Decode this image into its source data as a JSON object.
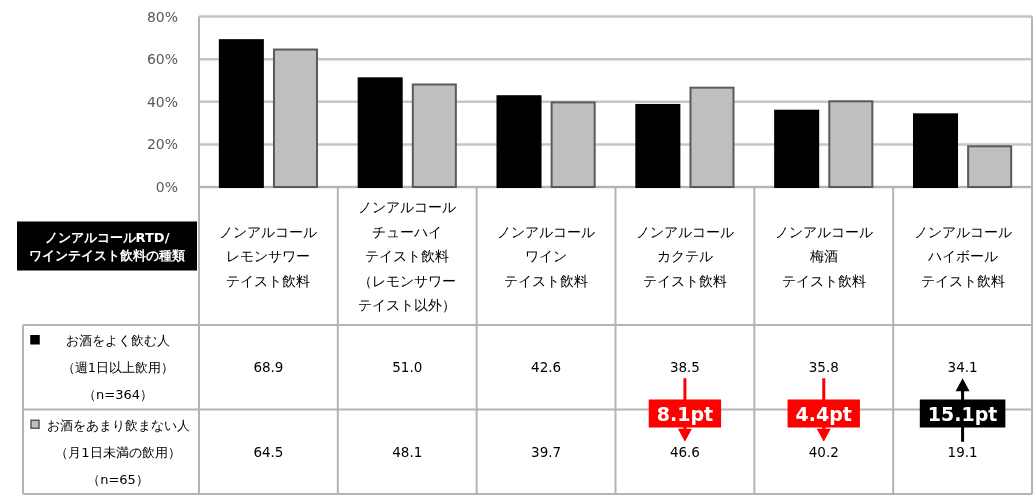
{
  "chart_data": {
    "type": "bar",
    "xlabel": "ノンアルコールRTD/\nワインテイスト飲料の種類",
    "categories": [
      "ノンアルコールレモンサワーテイスト飲料",
      "ノンアルコールチューハイテイスト飲料（レモンサワーテイスト以外）",
      "ノンアルコールワインテイスト飲料",
      "ノンアルコールカクテルテイスト飲料",
      "ノンアルコール梅酒テイスト飲料",
      "ノンアルコールハイボールテイスト飲料"
    ],
    "series": [
      {
        "name": "お酒をよく飲む人（週1日以上飲用）（n=364）",
        "color": "#000000",
        "values": [
          68.9,
          51.0,
          42.6,
          38.5,
          35.8,
          34.1
        ],
        "value_labels": [
          "68.9",
          "51.0",
          "42.6",
          "38.5",
          "35.8",
          "34.1"
        ]
      },
      {
        "name": "お酒をあまり飲まない人（月1日未満の飲用）（n=65）",
        "color": "#bfbfbf",
        "values": [
          64.5,
          48.1,
          39.7,
          46.6,
          40.2,
          19.1
        ],
        "value_labels": [
          "64.5",
          "48.1",
          "39.7",
          "46.6",
          "40.2",
          "19.1"
        ]
      }
    ],
    "ylim": [
      0,
      80
    ],
    "yticks": [
      {
        "value": 0,
        "label": "0%"
      },
      {
        "value": 20,
        "label": "20%"
      },
      {
        "value": 40,
        "label": "40%"
      },
      {
        "value": 60,
        "label": "60%"
      },
      {
        "value": 80,
        "label": "80%"
      }
    ],
    "grid": "y",
    "legend": "bottom left",
    "annotations": [
      "8.1pt",
      "4.4pt",
      "15.1pt"
    ]
  }
}
